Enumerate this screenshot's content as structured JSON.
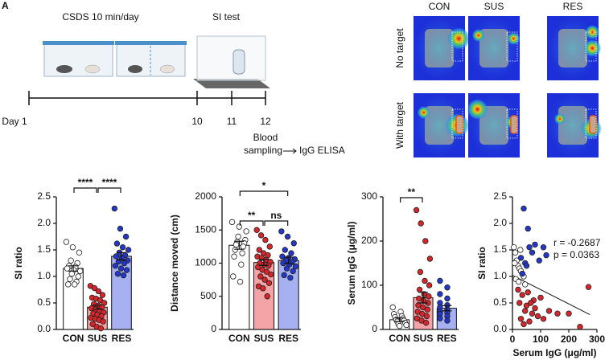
{
  "panel_label": "A",
  "timeline": {
    "stages": [
      "CSDS 10 min/day",
      "SI test"
    ],
    "days": [
      "Day 1",
      "10",
      "11",
      "12"
    ],
    "sampling": [
      "Blood",
      "sampling"
    ],
    "assay": "IgG ELISA"
  },
  "heatmap": {
    "columns": [
      "CON",
      "SUS",
      "RES"
    ],
    "rows": [
      "No target",
      "With target"
    ]
  },
  "chart_data": [
    {
      "type": "bar",
      "ylabel": "SI ratio",
      "categories": [
        "CON",
        "SUS",
        "RES"
      ],
      "values": [
        1.15,
        0.42,
        1.38
      ],
      "errors": [
        0.05,
        0.04,
        0.07
      ],
      "colors": [
        "#ffffff",
        "#f4a3a6",
        "#a7b0f0"
      ],
      "point_colors": [
        "#ffffff",
        "#d7262b",
        "#2338c8"
      ],
      "points": [
        [
          1.65,
          1.55,
          1.45,
          1.3,
          1.25,
          1.2,
          1.18,
          1.15,
          1.12,
          1.1,
          1.05,
          1.0,
          0.95,
          0.9,
          0.85,
          0.85
        ],
        [
          0.82,
          0.78,
          0.72,
          0.65,
          0.6,
          0.58,
          0.55,
          0.5,
          0.48,
          0.45,
          0.42,
          0.4,
          0.38,
          0.35,
          0.32,
          0.3,
          0.28,
          0.25,
          0.22,
          0.2,
          0.18,
          0.15,
          0.1,
          0.05,
          0.02
        ],
        [
          2.28,
          1.9,
          1.75,
          1.62,
          1.55,
          1.5,
          1.45,
          1.4,
          1.38,
          1.35,
          1.3,
          1.28,
          1.25,
          1.2,
          1.15,
          1.12,
          1.05,
          1.02
        ]
      ],
      "ylim": [
        0,
        2.5
      ],
      "yticks": [
        {
          "value": 0,
          "label": "0.0"
        },
        0.5,
        {
          "value": 1,
          "label": "1.0"
        },
        1.5,
        {
          "value": 2,
          "label": "2.0"
        },
        2.5
      ],
      "significance": [
        {
          "groups": [
            "CON",
            "SUS"
          ],
          "label": "****"
        },
        {
          "groups": [
            "SUS",
            "RES"
          ],
          "label": "****"
        }
      ]
    },
    {
      "type": "bar",
      "ylabel": "Distance moved (cm)",
      "categories": [
        "CON",
        "SUS",
        "RES"
      ],
      "values": [
        1270,
        1010,
        1040
      ],
      "errors": [
        60,
        45,
        50
      ],
      "colors": [
        "#ffffff",
        "#f4a3a6",
        "#a7b0f0"
      ],
      "point_colors": [
        "#ffffff",
        "#d7262b",
        "#2338c8"
      ],
      "points": [
        [
          1620,
          1550,
          1480,
          1400,
          1350,
          1320,
          1300,
          1280,
          1250,
          1200,
          1150,
          1100,
          980,
          800,
          720
        ],
        [
          1500,
          1420,
          1350,
          1250,
          1200,
          1150,
          1120,
          1100,
          1080,
          1050,
          1020,
          1000,
          980,
          960,
          940,
          900,
          870,
          830,
          800,
          750,
          700,
          650,
          620,
          500
        ],
        [
          1480,
          1400,
          1300,
          1200,
          1150,
          1100,
          1080,
          1060,
          1040,
          1020,
          1000,
          980,
          950,
          920,
          880,
          820,
          780
        ]
      ],
      "ylim": [
        0,
        2000
      ],
      "yticks": [
        0,
        500,
        1000,
        1500,
        2000
      ],
      "significance": [
        {
          "groups": [
            "CON",
            "SUS"
          ],
          "label": "**"
        },
        {
          "groups": [
            "SUS",
            "RES"
          ],
          "label": "ns"
        },
        {
          "groups": [
            "CON",
            "RES"
          ],
          "label": "*"
        }
      ]
    },
    {
      "type": "bar",
      "ylabel": "Serum IgG (μg/ml)",
      "categories": [
        "CON",
        "SUS",
        "RES"
      ],
      "values": [
        22,
        72,
        48
      ],
      "errors": [
        4,
        12,
        6
      ],
      "colors": [
        "#ffffff",
        "#f4a3a6",
        "#a7b0f0"
      ],
      "point_colors": [
        "#ffffff",
        "#d7262b",
        "#2338c8"
      ],
      "points": [
        [
          50,
          40,
          35,
          30,
          28,
          25,
          22,
          20,
          18,
          15,
          12,
          10,
          8
        ],
        [
          270,
          240,
          200,
          160,
          130,
          110,
          100,
          90,
          80,
          75,
          70,
          65,
          60,
          55,
          50,
          45,
          40,
          35,
          30,
          25,
          20,
          15
        ],
        [
          110,
          95,
          80,
          70,
          60,
          55,
          50,
          45,
          40,
          38,
          35,
          30,
          25,
          20
        ]
      ],
      "ylim": [
        0,
        300
      ],
      "yticks": [
        0,
        100,
        200,
        300
      ],
      "significance": [
        {
          "groups": [
            "CON",
            "SUS"
          ],
          "label": "**"
        }
      ]
    },
    {
      "type": "scatter",
      "ylabel": "SI ratio",
      "xlabel": "Serum IgG (μg/ml)",
      "series": [
        {
          "color": "#ffffff",
          "x": [
            5,
            10,
            15,
            20,
            25,
            30,
            35,
            40,
            12,
            22,
            8,
            28,
            45
          ],
          "values": [
            1.55,
            1.45,
            1.3,
            1.2,
            1.15,
            1.1,
            1.05,
            1.0,
            0.95,
            0.9,
            1.25,
            1.5,
            0.85
          ]
        },
        {
          "color": "#d7262b",
          "x": [
            270,
            240,
            200,
            160,
            130,
            110,
            100,
            90,
            80,
            75,
            70,
            65,
            60,
            55,
            50,
            45,
            40,
            35,
            30,
            25,
            20
          ],
          "values": [
            0.8,
            0.05,
            0.3,
            0.3,
            0.35,
            0.2,
            0.6,
            0.25,
            0.4,
            0.55,
            0.3,
            0.5,
            0.15,
            0.7,
            0.45,
            0.35,
            0.1,
            0.65,
            0.2,
            0.5,
            0.75
          ]
        },
        {
          "color": "#2338c8",
          "x": [
            40,
            55,
            60,
            70,
            80,
            95,
            110,
            120,
            30,
            45,
            50,
            35
          ],
          "values": [
            2.28,
            1.9,
            1.55,
            1.45,
            1.6,
            1.3,
            1.55,
            1.4,
            1.35,
            1.25,
            1.2,
            1.05
          ]
        }
      ],
      "fit_line": {
        "x": [
          0,
          275
        ],
        "y": [
          1.02,
          0.28
        ]
      },
      "annotations": [
        "r = -0.2687",
        "p = 0.0363"
      ],
      "xlim": [
        0,
        300
      ],
      "xticks": [
        0,
        100,
        200,
        300
      ],
      "ylim": [
        0,
        2.5
      ],
      "yticks": [
        {
          "value": 0,
          "label": "0.0"
        },
        0.5,
        {
          "value": 1,
          "label": "1.0"
        },
        1.5,
        {
          "value": 2,
          "label": "2.0"
        },
        2.5
      ]
    }
  ]
}
